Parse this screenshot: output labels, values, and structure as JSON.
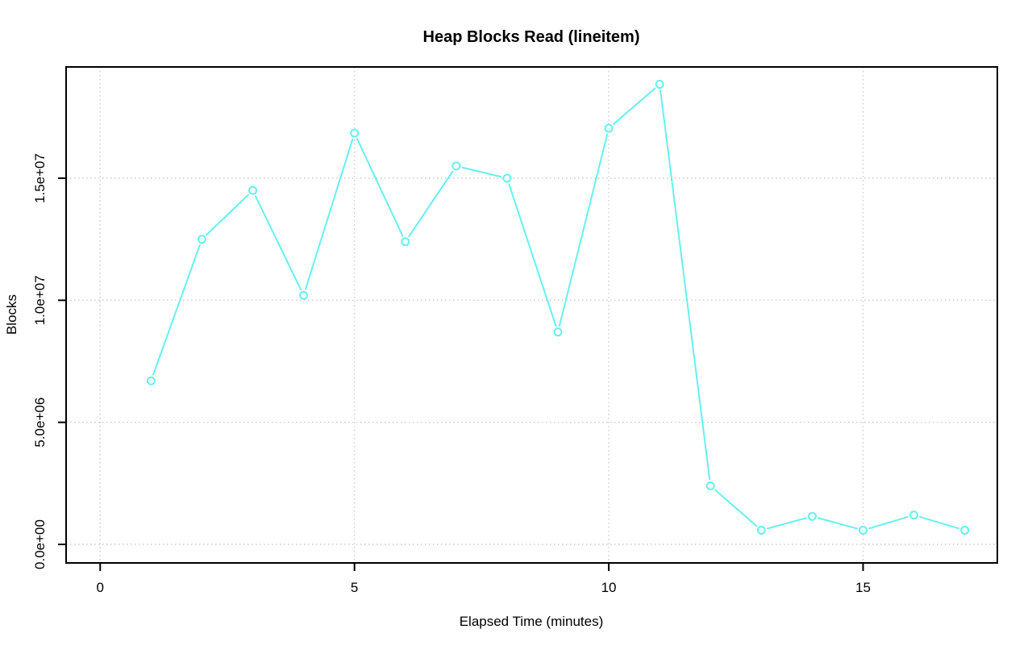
{
  "chart_data": {
    "type": "line",
    "title": "Heap Blocks Read (lineitem)",
    "xlabel": "Elapsed Time (minutes)",
    "ylabel": "Blocks",
    "x": [
      1,
      2,
      3,
      4,
      5,
      6,
      7,
      8,
      9,
      10,
      11,
      12,
      13,
      14,
      15,
      16,
      17
    ],
    "values": [
      6700000,
      12500000,
      14500000,
      10200000,
      16850000,
      12400000,
      15500000,
      15000000,
      8700000,
      17050000,
      18850000,
      2400000,
      580000,
      1150000,
      580000,
      1200000,
      580000
    ],
    "x_ticks": {
      "values": [
        0,
        5,
        10,
        15
      ],
      "labels": [
        "0",
        "5",
        "10",
        "15"
      ]
    },
    "y_ticks": {
      "values": [
        0,
        5000000,
        10000000,
        15000000
      ],
      "labels": [
        "0.0e+00",
        "5.0e+06",
        "1.0e+07",
        "1.5e+07"
      ]
    },
    "xlim": [
      -0.67,
      17.64
    ],
    "ylim": [
      -760000,
      19560000
    ],
    "grid": "dotted",
    "marker": "open-circle",
    "legend": null,
    "colors": {
      "line": "#66F0F0",
      "marker": "#66F0F0",
      "grid": "#CCCCCC",
      "axis": "#000000",
      "background": "#FFFFFF"
    }
  }
}
